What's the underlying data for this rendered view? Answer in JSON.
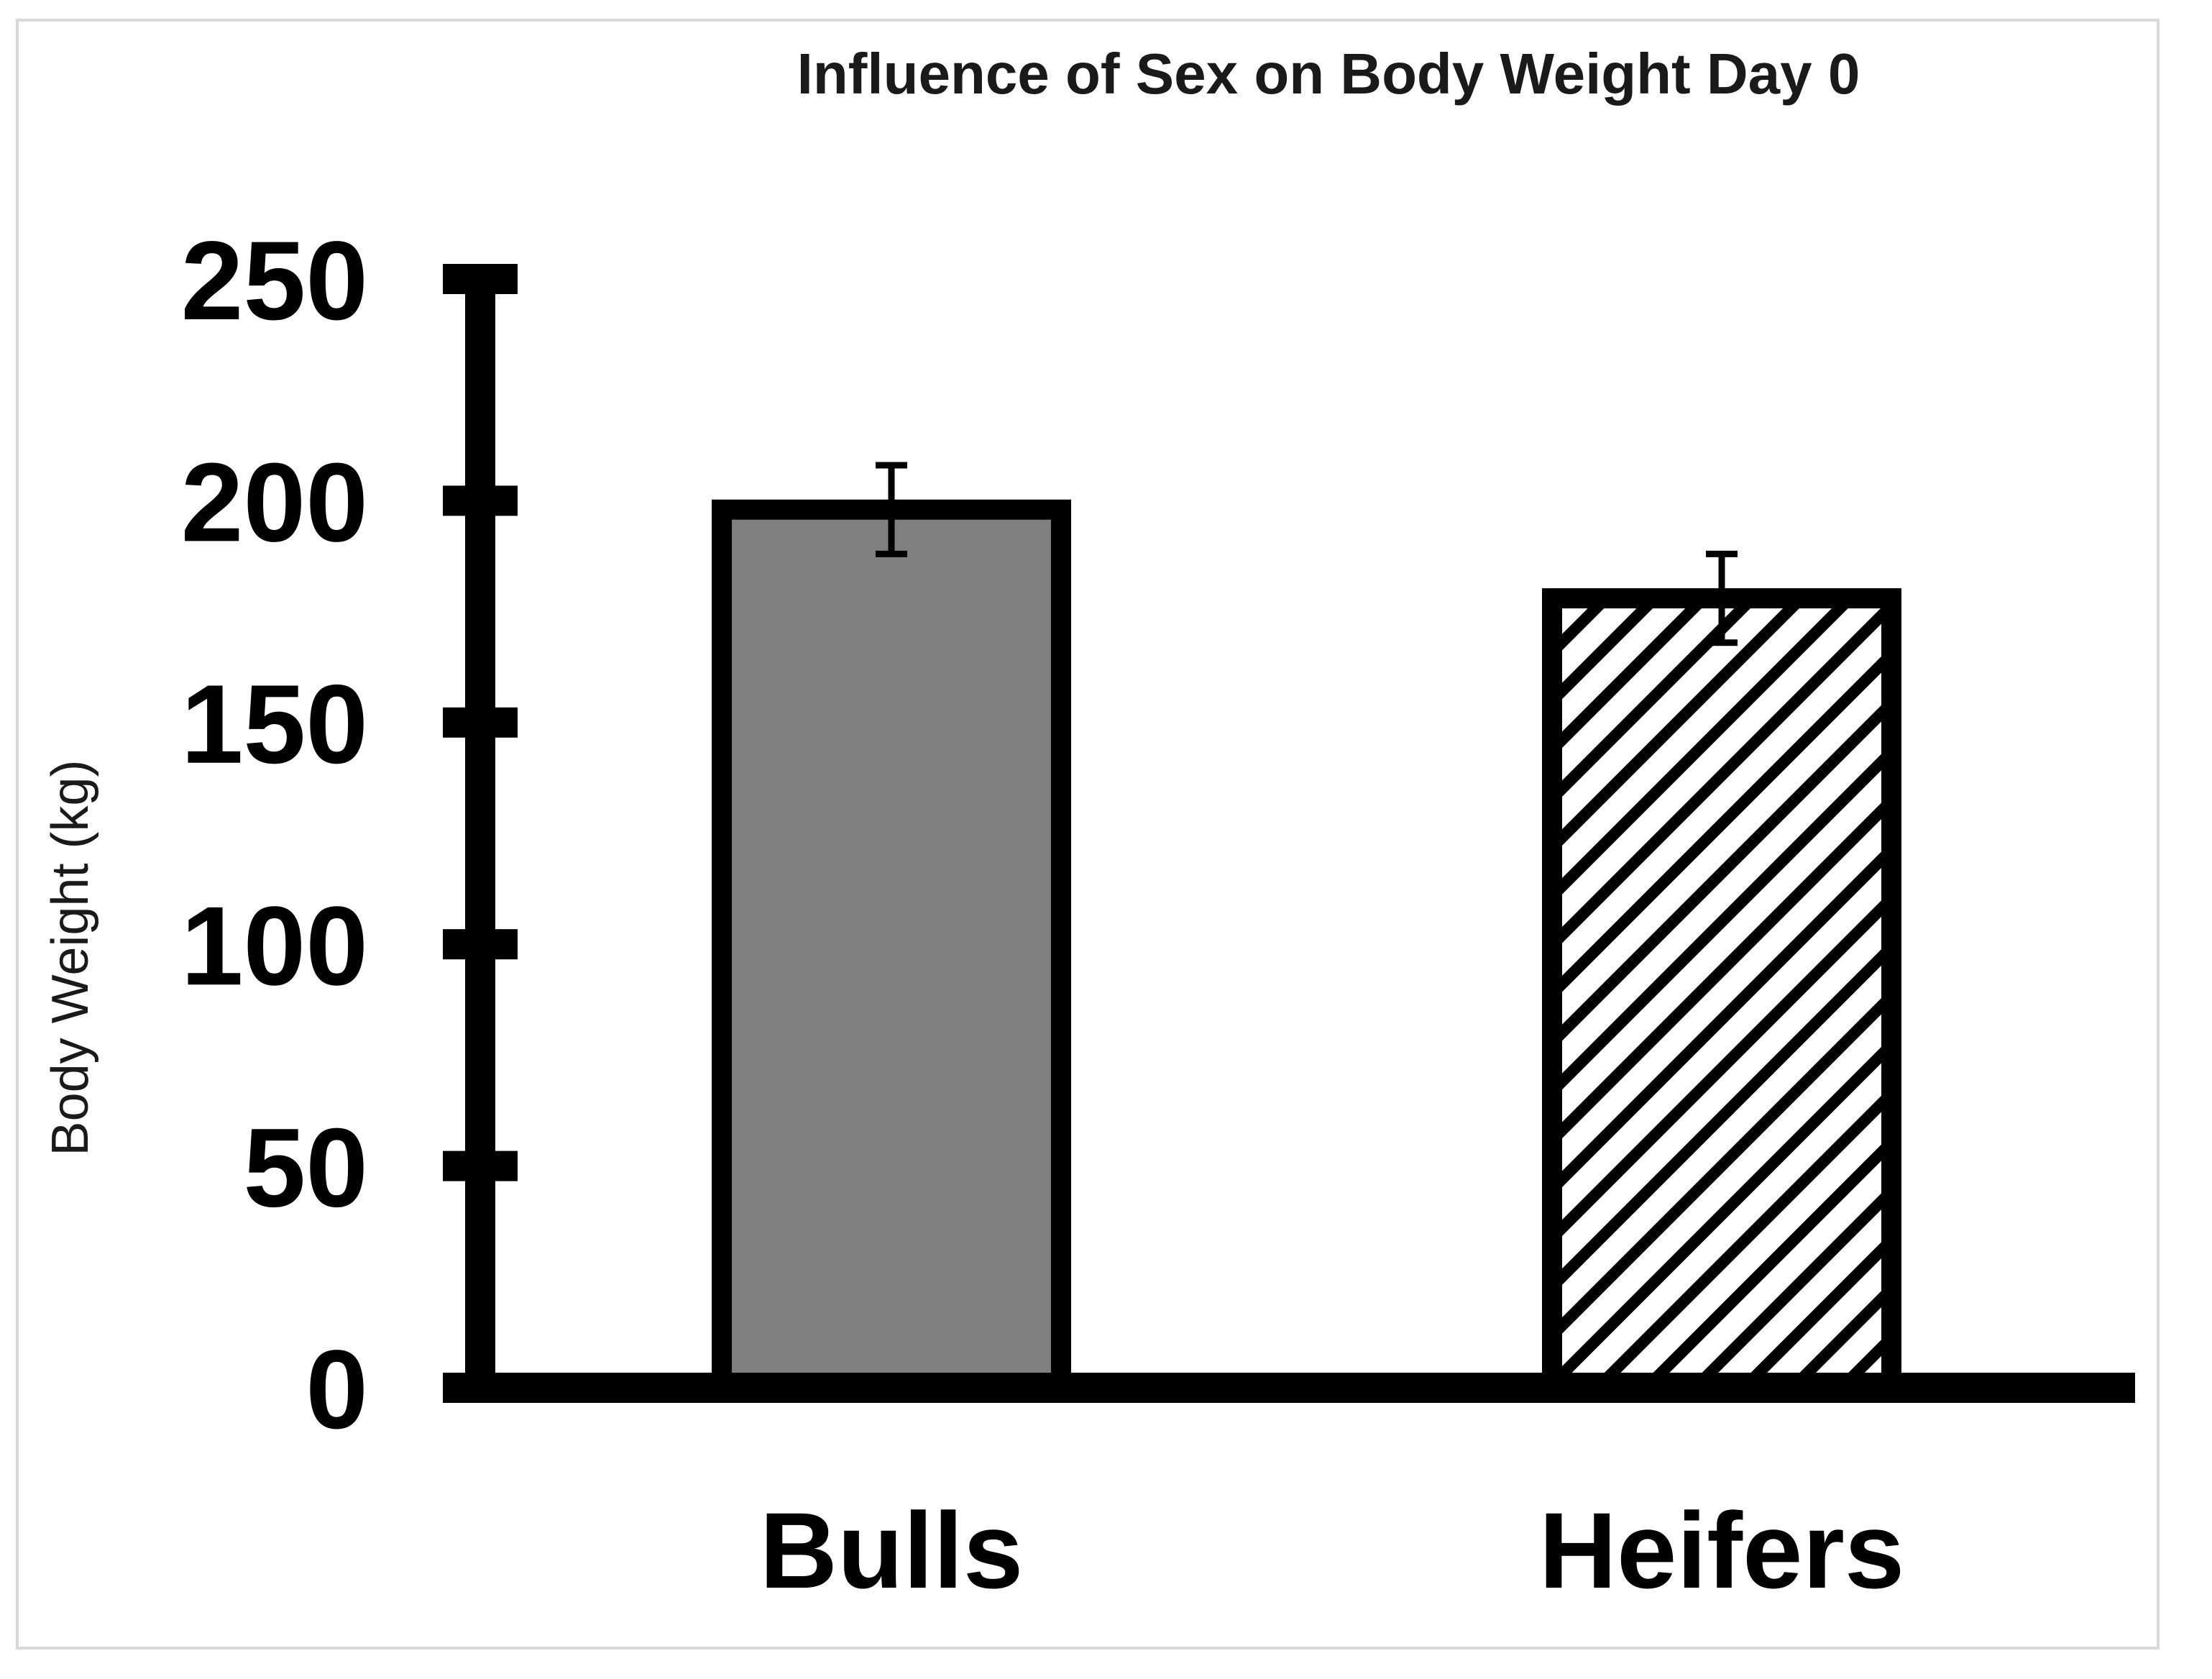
{
  "chart_data": {
    "type": "bar",
    "title": "Influence of Sex on Body Weight Day 0",
    "xlabel": "",
    "ylabel": "Body Weight (kg)",
    "categories": [
      "Bulls",
      "Heifers"
    ],
    "values": [
      198,
      178
    ],
    "errors": [
      10,
      10
    ],
    "ylim": [
      0,
      250
    ],
    "yticks": [
      0,
      50,
      100,
      150,
      200,
      250
    ],
    "grid": false,
    "legend": "none",
    "bar_fills": [
      "solid",
      "diagonal-hatch"
    ],
    "colors": {
      "bulls_fill": "#808080",
      "heifers_hatch": "#000000",
      "axis": "#000000"
    }
  }
}
